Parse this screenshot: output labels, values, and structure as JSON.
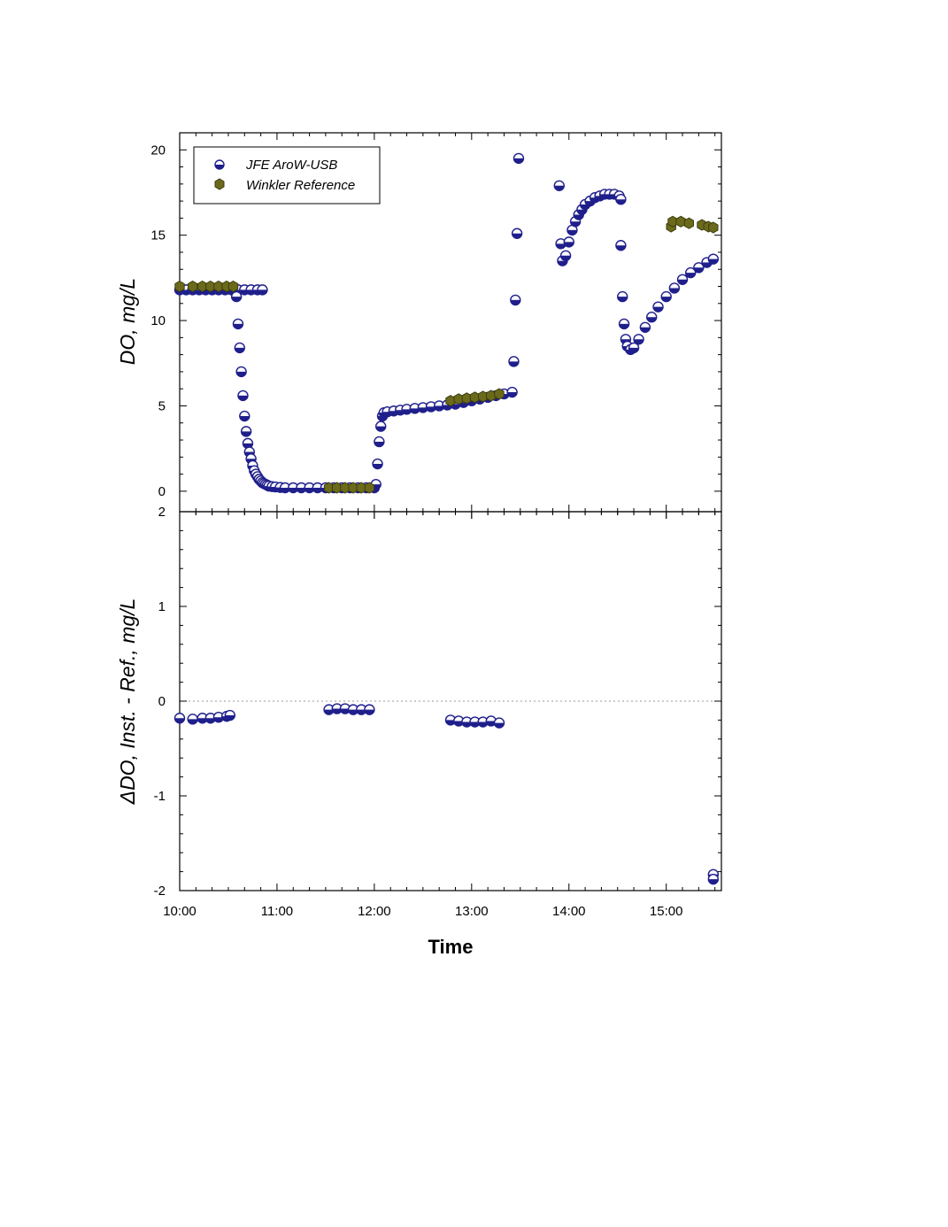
{
  "chart_data": [
    {
      "type": "scatter",
      "panel": "top",
      "ylabel": "DO, mg/L",
      "ylim": [
        -1.2,
        21
      ],
      "yticks": [
        "0",
        "5",
        "10",
        "15",
        "20"
      ],
      "xlim": [
        "10:00",
        "15:34"
      ],
      "grid": false,
      "legend": "top-left",
      "series": [
        {
          "name": "JFE AroW-USB",
          "marker": "half-filled circle",
          "color": "#1f1f8c",
          "points": [
            [
              "10:00",
              11.8
            ],
            [
              "10:04",
              11.8
            ],
            [
              "10:08",
              11.8
            ],
            [
              "10:12",
              11.8
            ],
            [
              "10:16",
              11.8
            ],
            [
              "10:20",
              11.8
            ],
            [
              "10:24",
              11.8
            ],
            [
              "10:28",
              11.8
            ],
            [
              "10:32",
              11.8
            ],
            [
              "10:36",
              11.8
            ],
            [
              "10:40",
              11.8
            ],
            [
              "10:44",
              11.8
            ],
            [
              "10:48",
              11.8
            ],
            [
              "10:51",
              11.8
            ],
            [
              "10:35",
              11.4
            ],
            [
              "10:36",
              9.8
            ],
            [
              "10:37",
              8.4
            ],
            [
              "10:38",
              7.0
            ],
            [
              "10:39",
              5.6
            ],
            [
              "10:40",
              4.4
            ],
            [
              "10:41",
              3.5
            ],
            [
              "10:42",
              2.8
            ],
            [
              "10:43",
              2.3
            ],
            [
              "10:44",
              1.9
            ],
            [
              "10:45",
              1.5
            ],
            [
              "10:46",
              1.2
            ],
            [
              "10:47",
              1.0
            ],
            [
              "10:48",
              0.85
            ],
            [
              "10:49",
              0.7
            ],
            [
              "10:50",
              0.6
            ],
            [
              "10:51",
              0.5
            ],
            [
              "10:52",
              0.45
            ],
            [
              "10:53",
              0.4
            ],
            [
              "10:54",
              0.35
            ],
            [
              "10:55",
              0.3
            ],
            [
              "10:57",
              0.27
            ],
            [
              "10:59",
              0.25
            ],
            [
              "11:02",
              0.22
            ],
            [
              "11:05",
              0.2
            ],
            [
              "11:10",
              0.2
            ],
            [
              "11:15",
              0.2
            ],
            [
              "11:20",
              0.2
            ],
            [
              "11:25",
              0.2
            ],
            [
              "11:30",
              0.2
            ],
            [
              "11:35",
              0.2
            ],
            [
              "11:40",
              0.2
            ],
            [
              "11:45",
              0.2
            ],
            [
              "11:50",
              0.2
            ],
            [
              "11:55",
              0.2
            ],
            [
              "12:00",
              0.2
            ],
            [
              "12:01",
              0.4
            ],
            [
              "12:02",
              1.6
            ],
            [
              "12:03",
              2.9
            ],
            [
              "12:04",
              3.8
            ],
            [
              "12:05",
              4.4
            ],
            [
              "12:06",
              4.6
            ],
            [
              "12:08",
              4.65
            ],
            [
              "12:12",
              4.7
            ],
            [
              "12:16",
              4.75
            ],
            [
              "12:20",
              4.8
            ],
            [
              "12:25",
              4.85
            ],
            [
              "12:30",
              4.9
            ],
            [
              "12:35",
              4.95
            ],
            [
              "12:40",
              5.0
            ],
            [
              "12:45",
              5.05
            ],
            [
              "12:50",
              5.1
            ],
            [
              "12:55",
              5.2
            ],
            [
              "13:00",
              5.3
            ],
            [
              "13:05",
              5.4
            ],
            [
              "13:10",
              5.5
            ],
            [
              "13:15",
              5.6
            ],
            [
              "13:20",
              5.7
            ],
            [
              "13:25",
              5.8
            ],
            [
              "13:26",
              7.6
            ],
            [
              "13:27",
              11.2
            ],
            [
              "13:28",
              15.1
            ],
            [
              "13:29",
              19.5
            ],
            [
              "13:54",
              17.9
            ],
            [
              "13:55",
              14.5
            ],
            [
              "13:56",
              13.5
            ],
            [
              "13:58",
              13.8
            ],
            [
              "14:00",
              14.6
            ],
            [
              "14:02",
              15.3
            ],
            [
              "14:04",
              15.8
            ],
            [
              "14:06",
              16.2
            ],
            [
              "14:08",
              16.5
            ],
            [
              "14:10",
              16.8
            ],
            [
              "14:13",
              17.0
            ],
            [
              "14:16",
              17.2
            ],
            [
              "14:19",
              17.3
            ],
            [
              "14:22",
              17.4
            ],
            [
              "14:25",
              17.4
            ],
            [
              "14:28",
              17.4
            ],
            [
              "14:31",
              17.3
            ],
            [
              "14:32",
              17.1
            ],
            [
              "14:32",
              14.4
            ],
            [
              "14:33",
              11.4
            ],
            [
              "14:34",
              9.8
            ],
            [
              "14:35",
              8.9
            ],
            [
              "14:36",
              8.5
            ],
            [
              "14:38",
              8.3
            ],
            [
              "14:40",
              8.4
            ],
            [
              "14:43",
              8.9
            ],
            [
              "14:47",
              9.6
            ],
            [
              "14:51",
              10.2
            ],
            [
              "14:55",
              10.8
            ],
            [
              "15:00",
              11.4
            ],
            [
              "15:05",
              11.9
            ],
            [
              "15:10",
              12.4
            ],
            [
              "15:15",
              12.8
            ],
            [
              "15:20",
              13.1
            ],
            [
              "15:25",
              13.4
            ],
            [
              "15:29",
              13.6
            ]
          ]
        },
        {
          "name": "Winkler Reference",
          "marker": "hexagon",
          "color": "#6b6a1c",
          "points": [
            [
              "10:00",
              12.0
            ],
            [
              "10:08",
              12.0
            ],
            [
              "10:14",
              12.0
            ],
            [
              "10:19",
              12.0
            ],
            [
              "10:24",
              12.0
            ],
            [
              "10:29",
              12.0
            ],
            [
              "10:33",
              12.0
            ],
            [
              "11:32",
              0.2
            ],
            [
              "11:37",
              0.2
            ],
            [
              "11:42",
              0.2
            ],
            [
              "11:47",
              0.2
            ],
            [
              "11:52",
              0.2
            ],
            [
              "11:57",
              0.2
            ],
            [
              "12:47",
              5.3
            ],
            [
              "12:52",
              5.4
            ],
            [
              "12:57",
              5.45
            ],
            [
              "13:02",
              5.5
            ],
            [
              "13:07",
              5.55
            ],
            [
              "13:12",
              5.6
            ],
            [
              "13:17",
              5.7
            ],
            [
              "15:03",
              15.5
            ],
            [
              "15:04",
              15.8
            ],
            [
              "15:09",
              15.8
            ],
            [
              "15:14",
              15.7
            ],
            [
              "15:22",
              15.6
            ],
            [
              "15:26",
              15.5
            ],
            [
              "15:29",
              15.45
            ]
          ]
        }
      ]
    },
    {
      "type": "scatter",
      "panel": "bottom",
      "ylabel": "ΔDO, Inst. - Ref., mg/L",
      "ylim": [
        -2,
        2
      ],
      "yticks": [
        "-2",
        "-1",
        "0",
        "1",
        "2"
      ],
      "xlabel": "Time",
      "xticks": [
        "10:00",
        "11:00",
        "12:00",
        "13:00",
        "14:00",
        "15:00"
      ],
      "xlim": [
        "10:00",
        "15:34"
      ],
      "reference_line": 0,
      "series": [
        {
          "name": "JFE AroW-USB",
          "marker": "half-filled circle",
          "color": "#1f1f8c",
          "points": [
            [
              "10:00",
              -0.18
            ],
            [
              "10:08",
              -0.19
            ],
            [
              "10:14",
              -0.18
            ],
            [
              "10:19",
              -0.18
            ],
            [
              "10:24",
              -0.17
            ],
            [
              "10:29",
              -0.16
            ],
            [
              "10:31",
              -0.15
            ],
            [
              "11:32",
              -0.09
            ],
            [
              "11:37",
              -0.08
            ],
            [
              "11:42",
              -0.08
            ],
            [
              "11:47",
              -0.09
            ],
            [
              "11:52",
              -0.09
            ],
            [
              "11:57",
              -0.09
            ],
            [
              "12:47",
              -0.2
            ],
            [
              "12:52",
              -0.21
            ],
            [
              "12:57",
              -0.22
            ],
            [
              "13:02",
              -0.22
            ],
            [
              "13:07",
              -0.22
            ],
            [
              "13:12",
              -0.21
            ],
            [
              "13:17",
              -0.23
            ],
            [
              "15:29",
              -1.83
            ],
            [
              "15:29",
              -1.88
            ]
          ]
        }
      ]
    }
  ],
  "legend": {
    "item1": "JFE AroW-USB",
    "item2": "Winkler Reference"
  }
}
